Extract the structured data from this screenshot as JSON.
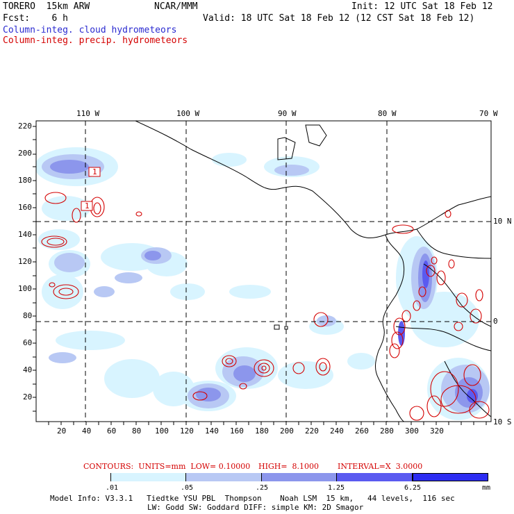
{
  "header": {
    "model": "TORERO  15km ARW",
    "center": "NCAR/MMM",
    "init": "Init: 12 UTC Sat 18 Feb 12",
    "fcst": "Fcst:    6 h",
    "valid": "Valid: 18 UTC Sat 18 Feb 12 (12 CST Sat 18 Feb 12)",
    "field1": "Column-integ. cloud hydrometeors",
    "field2": "Column-integ. precip. hydrometeors"
  },
  "colors": {
    "cloud_text": "#2a2ad0",
    "precip_contour": "#d40000",
    "shade_1": "#d8f4ff",
    "shade_2": "#b8c8f4",
    "shade_3": "#8c96ec",
    "shade_4": "#5a5af0",
    "shade_5": "#2c2cf2"
  },
  "map": {
    "lon_labels": [
      "110 W",
      "100 W",
      "90 W",
      "80 W",
      "70 W"
    ],
    "lat_labels": [
      "10 N",
      "0",
      "10 S"
    ],
    "y_ticks": [
      "220",
      "200",
      "180",
      "160",
      "140",
      "120",
      "100",
      "80",
      "60",
      "40",
      "20"
    ],
    "x_ticks": [
      "20",
      "40",
      "60",
      "80",
      "100",
      "120",
      "140",
      "160",
      "180",
      "200",
      "220",
      "240",
      "260",
      "280",
      "300",
      "320"
    ],
    "box_labels": [
      "1",
      "1"
    ]
  },
  "contours_line": {
    "units": "CONTOURS:  UNITS=mm  LOW= 0.10000",
    "high": "HIGH=  8.1000",
    "interval": "INTERVAL=X  3.0000"
  },
  "legend": {
    "labels": [
      ".01",
      ".05",
      ".25",
      "1.25",
      "6.25",
      "mm"
    ]
  },
  "footer": {
    "line1": "Model Info: V3.3.1   Tiedtke YSU PBL  Thompson    Noah LSM  15 km,   44 levels,  116 sec",
    "line2": "LW: Godd SW: Goddard DIFF: simple KM: 2D Smagor"
  }
}
